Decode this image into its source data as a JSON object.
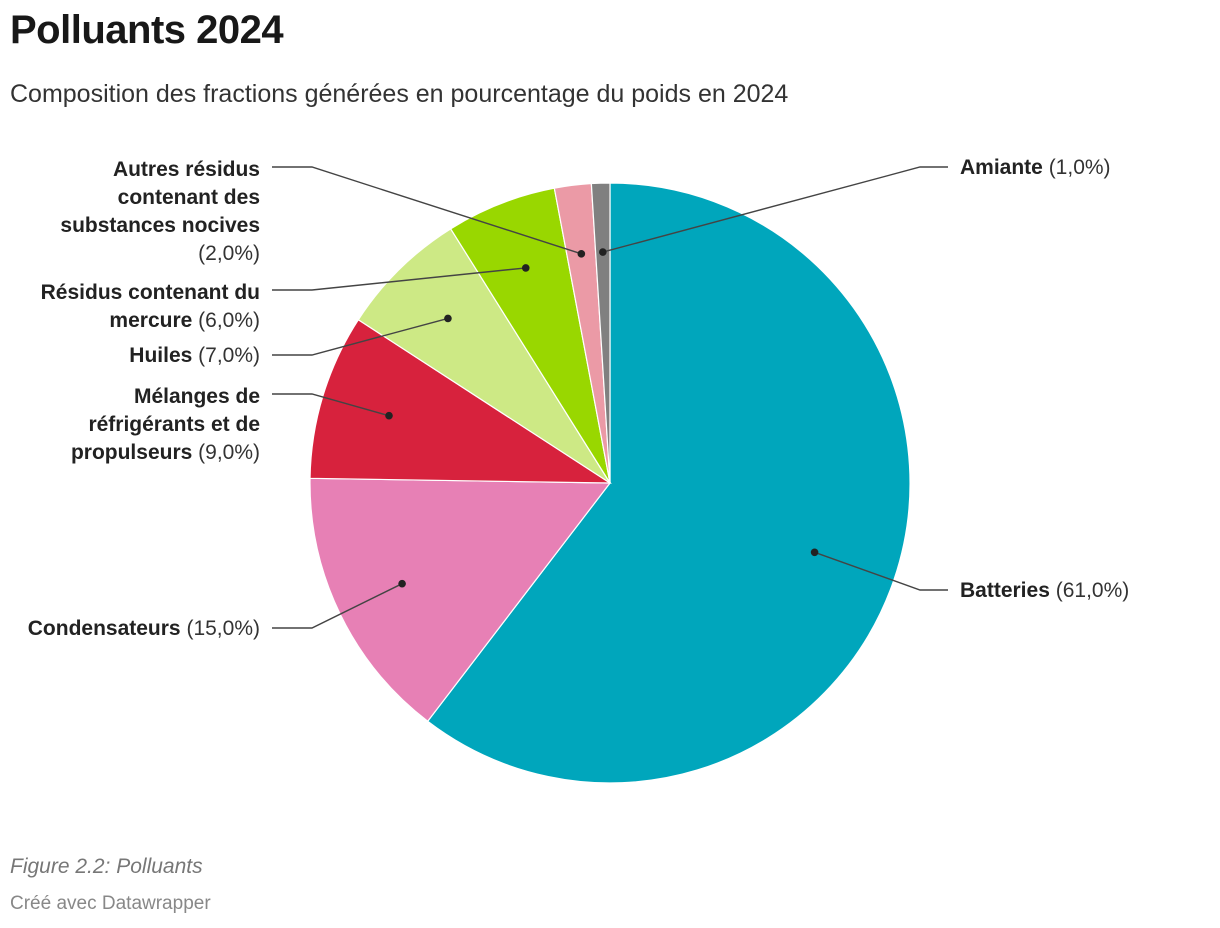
{
  "title": "Polluants 2024",
  "subtitle": "Composition des fractions générées en pourcentage du poids en 2024",
  "chart_data": {
    "type": "pie",
    "title": "Polluants 2024",
    "subtitle": "Composition des fractions générées en pourcentage du poids en 2024",
    "unit": "%",
    "slices": [
      {
        "id": "batteries",
        "name_lines": [
          "Batteries"
        ],
        "value": 61.0,
        "value_label": "(61,0%)",
        "color": "#00a6bc"
      },
      {
        "id": "condensateurs",
        "name_lines": [
          "Condensateurs"
        ],
        "value": 15.0,
        "value_label": "(15,0%)",
        "color": "#e780b5"
      },
      {
        "id": "melanges",
        "name_lines": [
          "Mélanges de",
          "réfrigérants et de",
          "propulseurs"
        ],
        "value": 9.0,
        "value_label": "(9,0%)",
        "color": "#d7223d"
      },
      {
        "id": "huiles",
        "name_lines": [
          "Huiles"
        ],
        "value": 7.0,
        "value_label": "(7,0%)",
        "color": "#cde985"
      },
      {
        "id": "mercure",
        "name_lines": [
          "Résidus contenant du",
          "mercure"
        ],
        "value": 6.0,
        "value_label": "(6,0%)",
        "color": "#99d700"
      },
      {
        "id": "autres",
        "name_lines": [
          "Autres résidus",
          "contenant des",
          "substances nocives"
        ],
        "value": 2.0,
        "value_label": "(2,0%)",
        "color": "#eb9aa6"
      },
      {
        "id": "amiante",
        "name_lines": [
          "Amiante"
        ],
        "value": 1.0,
        "value_label": "(1,0%)",
        "color": "#808080"
      }
    ]
  },
  "footer": {
    "caption": "Figure 2.2: Polluants",
    "credit": "Créé avec Datawrapper"
  }
}
